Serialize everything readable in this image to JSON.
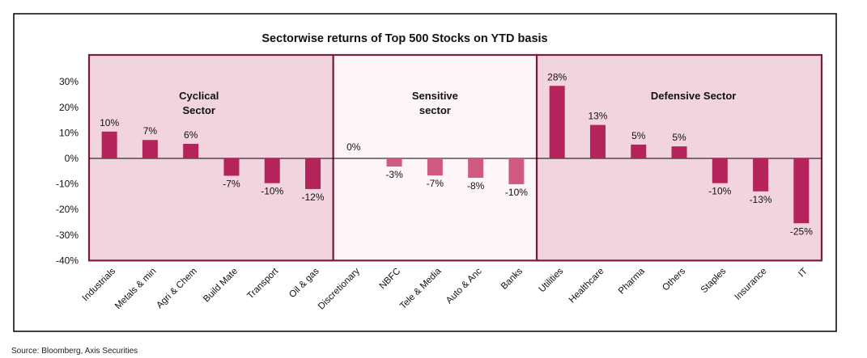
{
  "chart_data": {
    "type": "bar",
    "title": "Sectorwise returns of Top 500 Stocks on YTD basis",
    "categories": [
      "Industrials",
      "Metals & min",
      "Agri & Chem",
      "Build Mate",
      "Transport",
      "Oil & gas",
      "Discretionary",
      "NBFC",
      "Tele & Media",
      "Auto & Anc",
      "Banks",
      "Utilities",
      "Healthcare",
      "Pharma",
      "Others",
      "Staples",
      "Insurance",
      "IT"
    ],
    "values": [
      10.5,
      7.2,
      5.7,
      -6.8,
      -9.7,
      -12.0,
      0,
      -3.2,
      -6.7,
      -7.6,
      -10.1,
      28.4,
      13.1,
      5.4,
      4.7,
      -9.7,
      -12.9,
      -25.4
    ],
    "data_labels": [
      "10%",
      "7%",
      "6%",
      "-7%",
      "-10%",
      "-12%",
      "0%",
      "-3%",
      "-7%",
      "-8%",
      "-10%",
      "28%",
      "13%",
      "5%",
      "5%",
      "-10%",
      "-13%",
      "-25%"
    ],
    "y_ticks": [
      "30%",
      "20%",
      "10%",
      "0%",
      "-10%",
      "-20%",
      "-30%",
      "-40%"
    ],
    "ylim": [
      -40,
      35
    ],
    "xlabel": "",
    "ylabel": "",
    "grid": false,
    "groups": [
      {
        "label_lines": [
          "Cyclical",
          "Sector"
        ],
        "start": 0,
        "end": 5,
        "fill": "#f2d4de",
        "border": "#7a1c3e",
        "bar_color": "#b4235a"
      },
      {
        "label_lines": [
          "Sensitive",
          "sector"
        ],
        "start": 6,
        "end": 10,
        "fill": "#fdf5f8",
        "border": "#7a1c3e",
        "bar_color": "#cf5a80"
      },
      {
        "label_lines": [
          "Defensive Sector"
        ],
        "start": 11,
        "end": 17,
        "fill": "#f2d4de",
        "border": "#7a1c3e",
        "bar_color": "#b4235a"
      }
    ]
  },
  "source": "Source: Bloomberg, Axis Securities"
}
